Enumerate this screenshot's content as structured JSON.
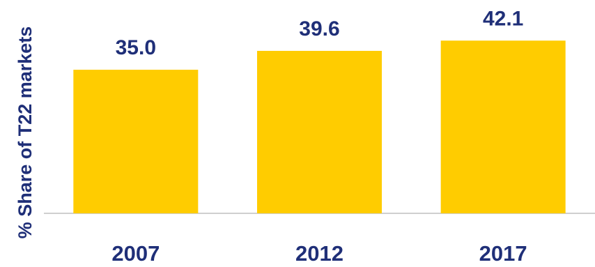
{
  "chart_data": {
    "type": "bar",
    "categories": [
      "2007",
      "2012",
      "2017"
    ],
    "values": [
      35.0,
      39.6,
      42.1
    ],
    "value_labels": [
      "35.0",
      "39.6",
      "42.1"
    ],
    "title": "",
    "xlabel": "",
    "ylabel": "% Share of T22 markets",
    "ylim": [
      0,
      52
    ],
    "grid": false,
    "legend": "none",
    "bar_color": "#FFCC00",
    "text_color": "#1F2F78",
    "axis_color": "#BFBFBF"
  }
}
